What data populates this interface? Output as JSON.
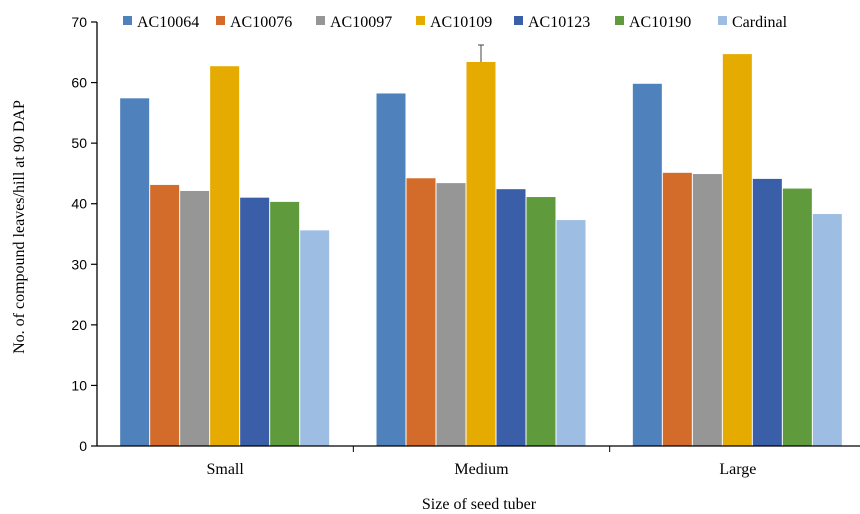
{
  "chart_data": {
    "type": "bar",
    "categories": [
      "Small",
      "Medium",
      "Large"
    ],
    "series": [
      {
        "name": "AC10064",
        "color": "#4f81bd",
        "values": [
          57.4,
          58.2,
          59.8
        ]
      },
      {
        "name": "AC10076",
        "color": "#d36b2a",
        "values": [
          43.1,
          44.2,
          45.1
        ]
      },
      {
        "name": "AC10097",
        "color": "#969696",
        "values": [
          42.1,
          43.4,
          44.9
        ]
      },
      {
        "name": "AC10109",
        "color": "#e5ab00",
        "values": [
          62.7,
          63.4,
          64.7
        ]
      },
      {
        "name": "AC10123",
        "color": "#3b5ea8",
        "values": [
          41.0,
          42.4,
          44.1
        ]
      },
      {
        "name": "AC10190",
        "color": "#5f9a3c",
        "values": [
          40.3,
          41.1,
          42.5
        ]
      },
      {
        "name": "Cardinal",
        "color": "#9dbde3",
        "values": [
          35.6,
          37.3,
          38.3
        ]
      }
    ],
    "error_bar": {
      "series": "AC10109",
      "category": "Medium",
      "upper": 66.2
    },
    "title": "",
    "xlabel": "Size of seed tuber",
    "ylabel": "No. of compound leaves/hill at 90 DAP",
    "ylim": [
      0,
      70
    ],
    "yticks": [
      0,
      10,
      20,
      30,
      40,
      50,
      60,
      70
    ],
    "grid": false,
    "legend_position": "top"
  }
}
